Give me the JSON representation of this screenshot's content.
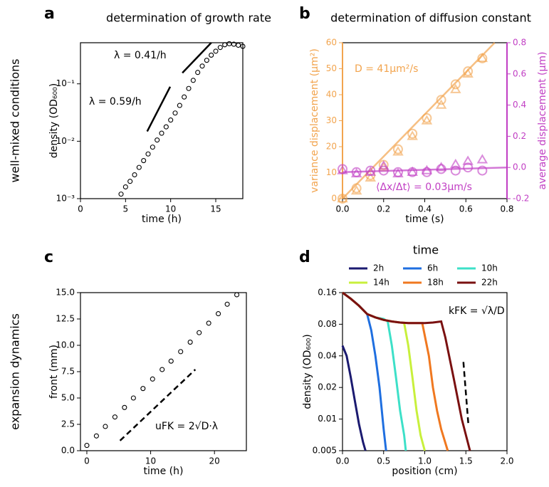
{
  "chart_data": [
    {
      "type": "scatter",
      "label": "a",
      "title": "determination of growth rate",
      "row_label": "well-mixed conditions",
      "xlabel": "time (h)",
      "ylabel": "density (OD₆₀₀)",
      "ylog": true,
      "xlim": [
        0,
        18
      ],
      "xticks": [
        0,
        5,
        10,
        15
      ],
      "ylim": [
        0.001,
        0.52
      ],
      "yticks": [
        {
          "value": 0.001,
          "label": "10⁻³"
        },
        {
          "value": 0.01,
          "label": "10⁻²"
        },
        {
          "value": 0.1,
          "label": "10⁻¹"
        }
      ],
      "annotations": [
        {
          "text": "λ = 0.41/h",
          "color": "#000000"
        },
        {
          "text": "λ = 0.59/h",
          "color": "#000000"
        }
      ],
      "series": [
        {
          "color": "#000000",
          "marker": "circle",
          "line": "none",
          "x": [
            4.5,
            5,
            5.5,
            6,
            6.5,
            7,
            7.5,
            8,
            8.5,
            9,
            9.5,
            10,
            10.5,
            11,
            11.5,
            12,
            12.5,
            13,
            13.5,
            14,
            14.5,
            15,
            15.5,
            16,
            16.5,
            17,
            17.5,
            18
          ],
          "values": [
            0.0012,
            0.0016,
            0.002,
            0.0026,
            0.0035,
            0.0046,
            0.006,
            0.0079,
            0.0105,
            0.0138,
            0.0178,
            0.0234,
            0.031,
            0.042,
            0.059,
            0.083,
            0.115,
            0.158,
            0.204,
            0.257,
            0.316,
            0.37,
            0.43,
            0.48,
            0.5,
            0.49,
            0.47,
            0.45
          ]
        },
        {
          "color": "#000000",
          "marker": "none",
          "line": "solid",
          "x": [
            7.4,
            9.95
          ],
          "values": [
            0.0148,
            0.089
          ]
        },
        {
          "color": "#000000",
          "marker": "none",
          "line": "solid",
          "x": [
            11.3,
            14.5
          ],
          "values": [
            0.155,
            0.52
          ]
        }
      ]
    },
    {
      "type": "scatter",
      "label": "b",
      "title": "determination of diffusion constant",
      "xlabel": "time (s)",
      "ylabel": "variance displacement (μm²)",
      "y2label": "average displacement (μm)",
      "ycolor": "#f2a44e",
      "y2color": "#c13fc4",
      "xlim": [
        0,
        0.8
      ],
      "xticks": [
        {
          "value": 0,
          "label": "0.0"
        },
        0.2,
        0.4,
        0.6,
        0.8
      ],
      "ylim": [
        0,
        60
      ],
      "yticks": [
        0,
        10,
        20,
        30,
        40,
        50,
        60
      ],
      "y2lim": [
        -0.2,
        0.8
      ],
      "y2ticks": [
        -0.2,
        {
          "value": 0,
          "label": "0.0"
        },
        0.2,
        0.4,
        0.6,
        0.8
      ],
      "annotations": [
        {
          "text": "D = 41μm²/s",
          "color": "#f2a44e"
        },
        {
          "text": "⟨Δx/Δt⟩ = 0.03μm/s",
          "color": "#c13fc4"
        }
      ],
      "series": [
        {
          "color": "#f2a44e",
          "marker": "circle",
          "line": "none",
          "alpha": 0.6,
          "x": [
            0,
            0.068,
            0.136,
            0.2,
            0.27,
            0.34,
            0.41,
            0.48,
            0.55,
            0.61,
            0.68
          ],
          "values": [
            0,
            4,
            9,
            13,
            19,
            25,
            31,
            38,
            44,
            49,
            54
          ]
        },
        {
          "color": "#f2a44e",
          "marker": "triangle",
          "line": "none",
          "alpha": 0.6,
          "x": [
            0,
            0.068,
            0.136,
            0.2,
            0.27,
            0.34,
            0.41,
            0.48,
            0.55,
            0.61,
            0.68
          ],
          "values": [
            0,
            3,
            8,
            12,
            18,
            24,
            30,
            36,
            42,
            48,
            54
          ]
        },
        {
          "color": "#f2a44e",
          "marker": "none",
          "line": "solid",
          "alpha": 0.7,
          "x": [
            0,
            0.74
          ],
          "values": [
            0,
            60
          ]
        },
        {
          "color": "#c13fc4",
          "marker": "circle",
          "line": "none",
          "alpha": 0.6,
          "axis": "y2",
          "x": [
            0,
            0.068,
            0.136,
            0.2,
            0.27,
            0.34,
            0.41,
            0.48,
            0.55,
            0.61,
            0.68
          ],
          "values": [
            -0.01,
            -0.03,
            -0.02,
            -0.02,
            -0.03,
            -0.03,
            -0.03,
            -0.01,
            -0.02,
            0,
            -0.02
          ]
        },
        {
          "color": "#c13fc4",
          "marker": "triangle",
          "line": "none",
          "alpha": 0.6,
          "axis": "y2",
          "x": [
            0,
            0.068,
            0.136,
            0.2,
            0.27,
            0.34,
            0.41,
            0.48,
            0.55,
            0.61,
            0.68
          ],
          "values": [
            -0.02,
            -0.04,
            -0.03,
            0.01,
            -0.04,
            -0.03,
            -0.02,
            0,
            0.02,
            0.04,
            0.05
          ]
        },
        {
          "color": "#c13fc4",
          "marker": "none",
          "line": "solid",
          "alpha": 0.7,
          "axis": "y2",
          "x": [
            0,
            0.8
          ],
          "values": [
            -0.03,
            0
          ]
        }
      ]
    },
    {
      "type": "scatter",
      "label": "c",
      "row_label": "expansion dynamics",
      "xlabel": "time (h)",
      "ylabel": "front (mm)",
      "xlim": [
        -1,
        25
      ],
      "xticks": [
        0,
        10,
        20
      ],
      "ylim": [
        0,
        15
      ],
      "yticks": [
        {
          "value": 0,
          "label": "0.0"
        },
        2.5,
        {
          "value": 5,
          "label": "5.0"
        },
        7.5,
        {
          "value": 10,
          "label": "10.0"
        },
        12.5,
        {
          "value": 15,
          "label": "15.0"
        }
      ],
      "annotations": [
        {
          "text": "uFK = 2√D·λ",
          "color": "#000000"
        }
      ],
      "series": [
        {
          "color": "#000000",
          "marker": "circle",
          "line": "none",
          "x": [
            0,
            1.5,
            2.9,
            4.4,
            5.9,
            7.3,
            8.8,
            10.3,
            11.8,
            13.2,
            14.7,
            16.2,
            17.6,
            19.1,
            20.6,
            22,
            23.5
          ],
          "values": [
            0.5,
            1.4,
            2.3,
            3.2,
            4.1,
            5,
            5.9,
            6.8,
            7.7,
            8.5,
            9.4,
            10.3,
            11.2,
            12.1,
            13,
            13.9,
            14.8
          ]
        },
        {
          "color": "#000000",
          "marker": "none",
          "line": "dashed",
          "x": [
            5.2,
            17
          ],
          "values": [
            0.95,
            7.7
          ]
        }
      ]
    },
    {
      "type": "line",
      "label": "d",
      "legend_title": "time",
      "xlabel": "position (cm)",
      "ylabel": "density (OD₆₀₀)",
      "ylog": true,
      "xlim": [
        0,
        2
      ],
      "xticks": [
        {
          "value": 0,
          "label": "0.0"
        },
        0.5,
        {
          "value": 1,
          "label": "1.0"
        },
        1.5,
        {
          "value": 2,
          "label": "2.0"
        }
      ],
      "ylim": [
        0.005,
        0.16
      ],
      "yticks": [
        0.005,
        0.01,
        0.02,
        0.04,
        0.08,
        0.16
      ],
      "annotations": [
        {
          "text": "kFK = √λ/D",
          "color": "#000000"
        }
      ],
      "series": [
        {
          "name": "2h",
          "color": "#1b1a70",
          "marker": "none",
          "line": "solid",
          "x": [
            0,
            0.05,
            0.1,
            0.15,
            0.2,
            0.25,
            0.28
          ],
          "values": [
            0.05,
            0.04,
            0.025,
            0.015,
            0.009,
            0.006,
            0.005
          ]
        },
        {
          "name": "6h",
          "color": "#1f6fe0",
          "marker": "none",
          "line": "solid",
          "x": [
            0,
            0.05,
            0.1,
            0.15,
            0.2,
            0.25,
            0.3,
            0.35,
            0.4,
            0.45,
            0.5,
            0.53
          ],
          "values": [
            0.16,
            0.15,
            0.14,
            0.13,
            0.12,
            0.11,
            0.1,
            0.07,
            0.04,
            0.02,
            0.008,
            0.005
          ]
        },
        {
          "name": "10h",
          "color": "#3de0c8",
          "marker": "none",
          "line": "solid",
          "x": [
            0,
            0.1,
            0.2,
            0.3,
            0.4,
            0.5,
            0.55,
            0.6,
            0.65,
            0.7,
            0.75,
            0.77
          ],
          "values": [
            0.16,
            0.14,
            0.12,
            0.1,
            0.093,
            0.09,
            0.085,
            0.05,
            0.025,
            0.012,
            0.007,
            0.005
          ]
        },
        {
          "name": "14h",
          "color": "#c8f03c",
          "marker": "none",
          "line": "solid",
          "x": [
            0,
            0.1,
            0.2,
            0.3,
            0.4,
            0.5,
            0.6,
            0.7,
            0.75,
            0.8,
            0.85,
            0.9,
            0.95,
            1
          ],
          "values": [
            0.16,
            0.14,
            0.12,
            0.1,
            0.093,
            0.088,
            0.085,
            0.083,
            0.082,
            0.05,
            0.025,
            0.012,
            0.007,
            0.005
          ]
        },
        {
          "name": "18h",
          "color": "#f07820",
          "marker": "none",
          "line": "solid",
          "x": [
            0,
            0.1,
            0.2,
            0.3,
            0.4,
            0.5,
            0.6,
            0.7,
            0.8,
            0.9,
            0.97,
            1.05,
            1.1,
            1.15,
            1.2,
            1.28
          ],
          "values": [
            0.16,
            0.14,
            0.12,
            0.1,
            0.093,
            0.088,
            0.085,
            0.083,
            0.082,
            0.082,
            0.082,
            0.04,
            0.02,
            0.012,
            0.008,
            0.005
          ]
        },
        {
          "name": "22h",
          "color": "#7a1010",
          "marker": "none",
          "line": "solid",
          "x": [
            0,
            0.1,
            0.2,
            0.3,
            0.4,
            0.5,
            0.6,
            0.7,
            0.8,
            0.9,
            1,
            1.1,
            1.2,
            1.25,
            1.35,
            1.45,
            1.55
          ],
          "values": [
            0.16,
            0.14,
            0.12,
            0.1,
            0.093,
            0.088,
            0.085,
            0.083,
            0.082,
            0.082,
            0.082,
            0.083,
            0.085,
            0.06,
            0.025,
            0.01,
            0.005
          ]
        },
        {
          "color": "#000000",
          "marker": "none",
          "line": "dashed",
          "x": [
            1.47,
            1.53
          ],
          "values": [
            0.035,
            0.009
          ]
        }
      ]
    }
  ]
}
